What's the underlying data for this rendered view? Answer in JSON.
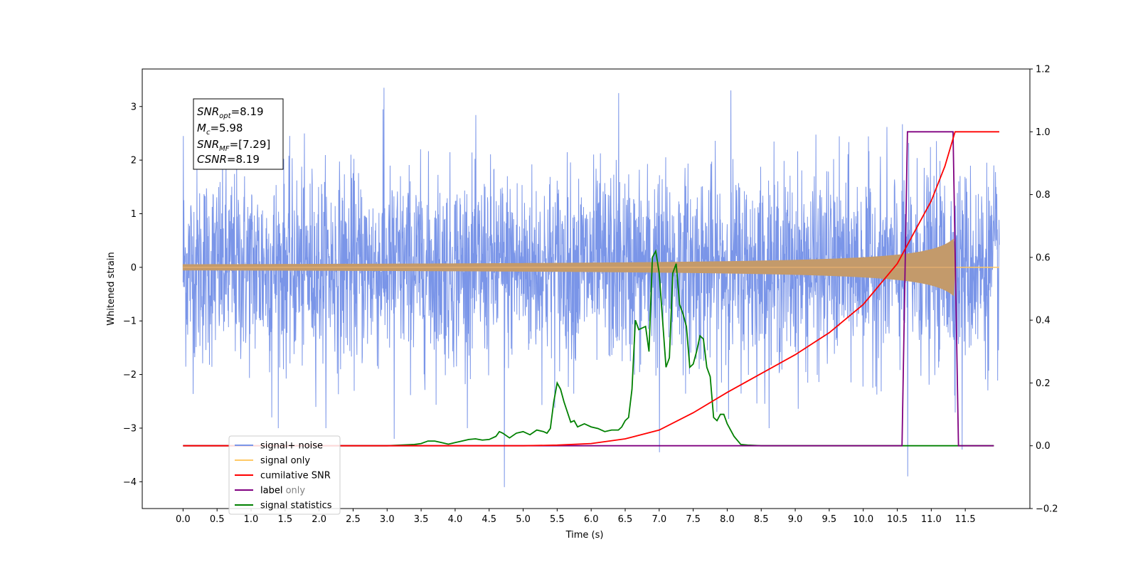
{
  "chart_data": {
    "type": "line",
    "xlabel": "Time (s)",
    "ylabel": "Whitened strain",
    "xlim": [
      -0.6,
      12.45
    ],
    "ylim": [
      -4.5,
      3.7
    ],
    "y2lim": [
      -0.2,
      1.2
    ],
    "x_ticks": [
      "0.0",
      "0.5",
      "1.0",
      "1.5",
      "2.0",
      "2.5",
      "3.0",
      "3.5",
      "4.0",
      "4.5",
      "5.0",
      "5.5",
      "6.0",
      "6.5",
      "7.0",
      "7.5",
      "8.0",
      "8.5",
      "9.0",
      "9.5",
      "10.0",
      "10.5",
      "11.0",
      "11.5"
    ],
    "y_ticks": [
      "−4",
      "−3",
      "−2",
      "−1",
      "0",
      "1",
      "2",
      "3"
    ],
    "y2_ticks": [
      "−0.2",
      "0.0",
      "0.2",
      "0.4",
      "0.6",
      "0.8",
      "1.0",
      "1.2"
    ],
    "annotation": {
      "snr_opt": {
        "base": "SNR",
        "sub": "opt",
        "value": "=8.19"
      },
      "mc": {
        "base": "M",
        "sub": "c",
        "value": "=5.98"
      },
      "snr_mf": {
        "base": "SNR",
        "sub": "MF",
        "value": "=[7.29]"
      },
      "csnr": {
        "base": "CSNR",
        "value": "=8.19"
      }
    },
    "legend": {
      "placement": "lower-left",
      "entries": [
        {
          "label": "signal+ noise",
          "color": "#7a95e8"
        },
        {
          "label": "signal only",
          "color": "#ffc966"
        },
        {
          "label": "cumilative SNR",
          "color": "#ff0000"
        },
        {
          "label": "label",
          "color": "#800080"
        },
        {
          "label": "signal statistics",
          "color": "#008000"
        }
      ],
      "hidden_overlap_label": "label only"
    },
    "series": [
      {
        "name": "signal+ noise",
        "axis": "left",
        "color": "#7a95e8",
        "x_range": [
          0.0,
          12.0
        ],
        "envelope": "approx. ±1.4 typical, peaks to +3.35 / −4.1"
      },
      {
        "name": "signal only",
        "axis": "left",
        "color": "#c39a6b",
        "x_range": [
          0.0,
          12.0
        ],
        "chirp_end": 11.35,
        "chirp_peak_amplitude": 0.55
      },
      {
        "name": "cumilative SNR",
        "axis": "right",
        "color": "#ff0000",
        "x": [
          0.0,
          5.0,
          5.5,
          6.0,
          6.5,
          7.0,
          7.5,
          8.0,
          8.5,
          9.0,
          9.5,
          10.0,
          10.5,
          11.0,
          11.2,
          11.35,
          12.0
        ],
        "y": [
          0.0,
          0.0,
          0.002,
          0.007,
          0.022,
          0.05,
          0.105,
          0.17,
          0.23,
          0.29,
          0.36,
          0.45,
          0.58,
          0.78,
          0.89,
          1.0,
          1.0
        ]
      },
      {
        "name": "label",
        "axis": "right",
        "color": "#800080",
        "x": [
          0.0,
          10.57,
          10.65,
          11.32,
          11.4,
          11.92
        ],
        "y": [
          0.0,
          0.0,
          1.0,
          1.0,
          0.0,
          0.0
        ]
      },
      {
        "name": "signal statistics",
        "axis": "right",
        "color": "#008000",
        "x": [
          0.0,
          3.0,
          3.2,
          3.4,
          3.5,
          3.6,
          3.7,
          3.8,
          3.9,
          4.0,
          4.1,
          4.2,
          4.3,
          4.4,
          4.5,
          4.6,
          4.65,
          4.7,
          4.8,
          4.9,
          5.0,
          5.1,
          5.2,
          5.3,
          5.35,
          5.4,
          5.45,
          5.5,
          5.55,
          5.6,
          5.7,
          5.75,
          5.8,
          5.9,
          6.0,
          6.1,
          6.2,
          6.3,
          6.4,
          6.45,
          6.5,
          6.55,
          6.6,
          6.65,
          6.7,
          6.8,
          6.85,
          6.9,
          6.95,
          7.0,
          7.1,
          7.15,
          7.2,
          7.25,
          7.3,
          7.35,
          7.4,
          7.45,
          7.5,
          7.55,
          7.6,
          7.65,
          7.7,
          7.75,
          7.8,
          7.85,
          7.9,
          7.95,
          8.0,
          8.1,
          8.2,
          8.3,
          8.5,
          9.0,
          10.0,
          11.0,
          11.92
        ],
        "y": [
          0.0,
          0.0,
          0.002,
          0.004,
          0.007,
          0.015,
          0.015,
          0.01,
          0.005,
          0.01,
          0.015,
          0.02,
          0.022,
          0.018,
          0.02,
          0.03,
          0.045,
          0.04,
          0.025,
          0.04,
          0.045,
          0.035,
          0.05,
          0.045,
          0.04,
          0.055,
          0.14,
          0.2,
          0.18,
          0.14,
          0.075,
          0.08,
          0.06,
          0.07,
          0.06,
          0.055,
          0.045,
          0.05,
          0.05,
          0.06,
          0.08,
          0.09,
          0.18,
          0.4,
          0.37,
          0.38,
          0.3,
          0.6,
          0.62,
          0.55,
          0.25,
          0.28,
          0.55,
          0.58,
          0.45,
          0.42,
          0.38,
          0.25,
          0.26,
          0.3,
          0.35,
          0.34,
          0.25,
          0.22,
          0.09,
          0.08,
          0.1,
          0.1,
          0.07,
          0.03,
          0.004,
          0.002,
          0.0,
          0.0,
          0.0,
          0.0,
          0.0
        ]
      }
    ]
  }
}
